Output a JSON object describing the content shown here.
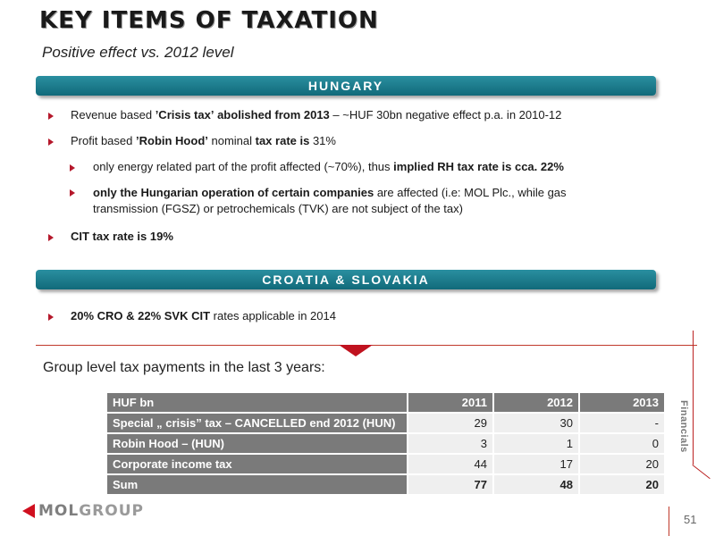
{
  "header": {
    "title": "KEY ITEMS OF TAXATION",
    "subtitle": "Positive effect vs. 2012 level"
  },
  "hungary": {
    "band_label": "HUNGARY",
    "b1_pre": "Revenue based ",
    "b1_bold": "’Crisis tax’",
    "b1_mid": " ",
    "b1_bold2": "abolished from 2013",
    "b1_post": " – ~HUF 30bn negative effect p.a. in 2010-12",
    "b2_pre": "Profit based ",
    "b2_bold": "’Robin Hood’",
    "b2_mid": " nominal ",
    "b2_bold2": "tax rate is",
    "b2_post": " 31%",
    "s1_pre": "only energy related part of the profit affected (~70%), thus ",
    "s1_bold": "implied RH tax rate is cca. 22%",
    "s2_bold": "only the Hungarian operation of certain companies",
    "s2_post": " are affected (i.e: MOL Plc., while gas",
    "s2_line2": "transmission (FGSZ) or petrochemicals (TVK) are not subject of the tax)",
    "b3_bold": "CIT tax rate is 19%"
  },
  "croatia": {
    "band_label": "CROATIA & SLOVAKIA",
    "b1_bold": "20% CRO & 22% SVK CIT",
    "b1_post": " rates applicable in 2014"
  },
  "group_label": "Group level tax payments in the last 3 years:",
  "table": {
    "headers": [
      "HUF bn",
      "2011",
      "2012",
      "2013"
    ],
    "rows": [
      [
        "Special „ crisis” tax – CANCELLED end 2012 (HUN)",
        "29",
        "30",
        "-"
      ],
      [
        "Robin Hood – (HUN)",
        "3",
        "1",
        "0"
      ],
      [
        "Corporate income tax",
        "44",
        "17",
        "20"
      ],
      [
        "Sum",
        "77",
        "48",
        "20"
      ]
    ]
  },
  "side_label": "Financials",
  "logo": {
    "part1": "MOL",
    "part2": "GROUP"
  },
  "page_number": "51",
  "colors": {
    "band": "#1a7a8a",
    "accent": "#c0121f",
    "table_dark": "#7a7a7a",
    "table_light": "#efefef"
  }
}
